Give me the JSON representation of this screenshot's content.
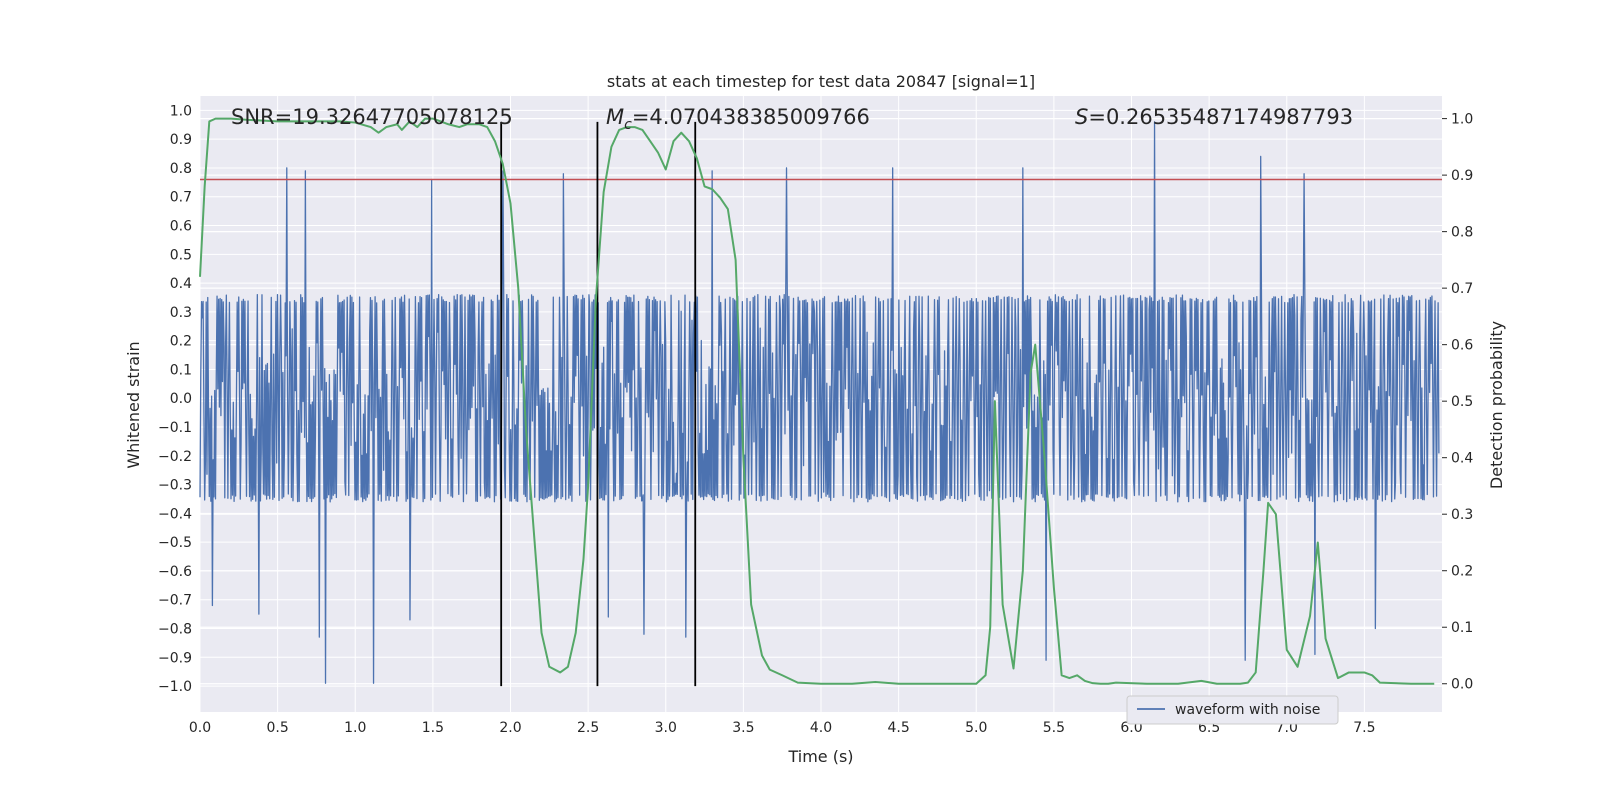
{
  "chart_data": {
    "type": "line",
    "title": "stats at each timestep for test data 20847 [signal=1]",
    "xlabel": "Time (s)",
    "ylabel": "Whitened strain",
    "y2label": "Detection probability",
    "xlim": [
      0.0,
      8.0
    ],
    "ylim": [
      -1.09,
      1.05
    ],
    "y2lim": [
      -0.05,
      1.04
    ],
    "x_ticks": [
      0.0,
      0.5,
      1.0,
      1.5,
      2.0,
      2.5,
      3.0,
      3.5,
      4.0,
      4.5,
      5.0,
      5.5,
      6.0,
      6.5,
      7.0,
      7.5
    ],
    "x_tick_labels": [
      "0.0",
      "0.5",
      "1.0",
      "1.5",
      "2.0",
      "2.5",
      "3.0",
      "3.5",
      "4.0",
      "4.5",
      "5.0",
      "5.5",
      "6.0",
      "6.5",
      "7.0",
      "7.5"
    ],
    "y_ticks": [
      1.0,
      0.9,
      0.8,
      0.7,
      0.6,
      0.5,
      0.4,
      0.3,
      0.2,
      0.1,
      0.0,
      -0.1,
      -0.2,
      -0.3,
      -0.4,
      -0.5,
      -0.6,
      -0.7,
      -0.8,
      -0.9,
      -1.0
    ],
    "y_tick_labels": [
      "1.0",
      "0.9",
      "0.8",
      "0.7",
      "0.6",
      "0.5",
      "0.4",
      "0.3",
      "0.2",
      "0.1",
      "0.0",
      "−0.1",
      "−0.2",
      "−0.3",
      "−0.4",
      "−0.5",
      "−0.6",
      "−0.7",
      "−0.8",
      "−0.9",
      "−1.0"
    ],
    "y2_ticks": [
      1.0,
      0.9,
      0.8,
      0.7,
      0.6,
      0.5,
      0.4,
      0.3,
      0.2,
      0.1,
      0.0
    ],
    "y2_tick_labels": [
      "1.0",
      "0.9",
      "0.8",
      "0.7",
      "0.6",
      "0.5",
      "0.4",
      "0.3",
      "0.2",
      "0.1",
      "0.0"
    ],
    "grid": true,
    "legend": {
      "location": "lower-right",
      "entries": [
        "waveform with noise"
      ]
    },
    "annotations": {
      "snr": "SNR=19.32647705078125",
      "mc_symbol": "M",
      "mc_sub": "c",
      "mc_value": "=4.070438385009766",
      "s_symbol": "S",
      "s_value": "=0.26535487174987793"
    },
    "threshold": {
      "y": 0.76,
      "color": "#c44e52"
    },
    "vertical_lines": {
      "x": [
        1.94,
        2.56,
        3.19
      ],
      "y_range": [
        -1.0,
        0.96
      ],
      "color": "#000000"
    },
    "waveform": {
      "name": "waveform with noise",
      "color": "#4c72b0",
      "seed": 20847,
      "n_samples": 1600,
      "core_amplitude": 0.36,
      "spike_peaks_positive": [
        {
          "x": 0.56,
          "y": 0.8
        },
        {
          "x": 0.68,
          "y": 0.79
        },
        {
          "x": 1.49,
          "y": 0.76
        },
        {
          "x": 1.95,
          "y": 0.79
        },
        {
          "x": 2.34,
          "y": 0.78
        },
        {
          "x": 3.3,
          "y": 0.79
        },
        {
          "x": 3.78,
          "y": 0.8
        },
        {
          "x": 4.46,
          "y": 0.8
        },
        {
          "x": 5.3,
          "y": 0.8
        },
        {
          "x": 6.15,
          "y": 0.96
        },
        {
          "x": 6.73,
          "y": 0.87
        },
        {
          "x": 6.83,
          "y": 0.84
        },
        {
          "x": 7.11,
          "y": 0.78
        }
      ],
      "spike_peaks_negative": [
        {
          "x": 0.08,
          "y": -0.72
        },
        {
          "x": 0.38,
          "y": -0.75
        },
        {
          "x": 0.77,
          "y": -0.83
        },
        {
          "x": 0.81,
          "y": -0.99
        },
        {
          "x": 1.12,
          "y": -0.99
        },
        {
          "x": 1.35,
          "y": -0.77
        },
        {
          "x": 2.63,
          "y": -0.76
        },
        {
          "x": 2.86,
          "y": -0.82
        },
        {
          "x": 3.13,
          "y": -0.83
        },
        {
          "x": 5.45,
          "y": -0.91
        },
        {
          "x": 6.73,
          "y": -0.91
        },
        {
          "x": 7.18,
          "y": -0.89
        },
        {
          "x": 7.57,
          "y": -0.8
        }
      ]
    },
    "detection_probability": {
      "name": "detection probability",
      "color": "#55a868",
      "x": [
        0.0,
        0.03,
        0.06,
        0.1,
        0.2,
        0.3,
        0.5,
        0.7,
        0.9,
        1.0,
        1.1,
        1.15,
        1.2,
        1.27,
        1.3,
        1.35,
        1.4,
        1.45,
        1.5,
        1.55,
        1.6,
        1.67,
        1.72,
        1.8,
        1.85,
        1.9,
        1.95,
        2.0,
        2.05,
        2.1,
        2.15,
        2.2,
        2.25,
        2.32,
        2.37,
        2.42,
        2.47,
        2.5,
        2.55,
        2.6,
        2.65,
        2.7,
        2.75,
        2.8,
        2.85,
        2.9,
        2.95,
        3.0,
        3.05,
        3.1,
        3.15,
        3.2,
        3.25,
        3.3,
        3.35,
        3.4,
        3.45,
        3.5,
        3.55,
        3.62,
        3.67,
        3.75,
        3.85,
        4.0,
        4.2,
        4.35,
        4.5,
        4.8,
        5.0,
        5.06,
        5.09,
        5.12,
        5.17,
        5.24,
        5.3,
        5.35,
        5.38,
        5.44,
        5.5,
        5.55,
        5.6,
        5.65,
        5.7,
        5.75,
        5.8,
        5.85,
        5.9,
        6.1,
        6.3,
        6.45,
        6.55,
        6.7,
        6.75,
        6.8,
        6.85,
        6.88,
        6.93,
        7.0,
        7.07,
        7.15,
        7.2,
        7.25,
        7.33,
        7.4,
        7.45,
        7.5,
        7.55,
        7.6,
        7.8,
        7.95
      ],
      "y": [
        0.72,
        0.88,
        0.995,
        1.0,
        1.0,
        0.998,
        0.995,
        0.995,
        0.995,
        0.993,
        0.985,
        0.975,
        0.985,
        0.99,
        0.98,
        0.995,
        0.985,
        1.0,
        1.0,
        0.995,
        0.99,
        0.985,
        0.99,
        0.99,
        0.985,
        0.96,
        0.92,
        0.85,
        0.7,
        0.45,
        0.27,
        0.09,
        0.03,
        0.02,
        0.03,
        0.09,
        0.22,
        0.35,
        0.68,
        0.87,
        0.95,
        0.98,
        0.985,
        0.985,
        0.98,
        0.96,
        0.94,
        0.91,
        0.96,
        0.975,
        0.96,
        0.93,
        0.88,
        0.875,
        0.86,
        0.84,
        0.75,
        0.4,
        0.14,
        0.05,
        0.025,
        0.015,
        0.002,
        0.0,
        0.0,
        0.003,
        0.0,
        0.0,
        0.0,
        0.015,
        0.1,
        0.5,
        0.14,
        0.027,
        0.2,
        0.55,
        0.6,
        0.4,
        0.17,
        0.015,
        0.01,
        0.015,
        0.005,
        0.001,
        0.0,
        0.0,
        0.002,
        0.0,
        0.0,
        0.005,
        0.0,
        0.0,
        0.002,
        0.02,
        0.2,
        0.32,
        0.3,
        0.06,
        0.03,
        0.12,
        0.25,
        0.08,
        0.01,
        0.02,
        0.02,
        0.02,
        0.015,
        0.002,
        0.0,
        0.0
      ]
    }
  }
}
